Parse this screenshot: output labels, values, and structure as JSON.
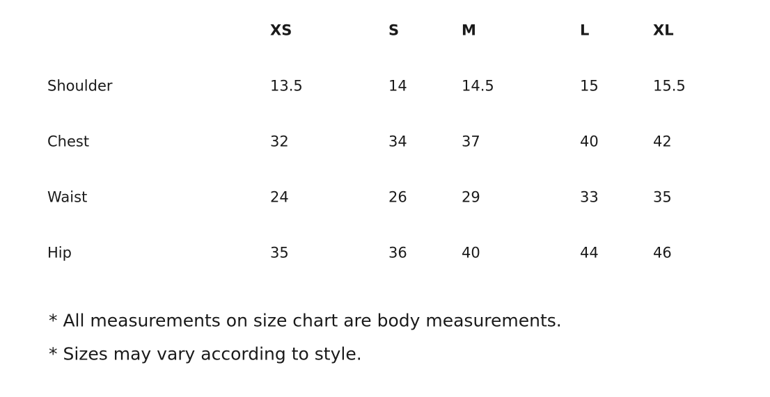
{
  "table": {
    "headers": [
      "XS",
      "S",
      "M",
      "L",
      "XL"
    ],
    "rows": [
      {
        "label": "Shoulder",
        "values": [
          13.5,
          14,
          14.5,
          15,
          15.5
        ]
      },
      {
        "label": "Chest",
        "values": [
          32,
          34,
          37,
          40,
          42
        ]
      },
      {
        "label": "Waist",
        "values": [
          24,
          26,
          29,
          33,
          35
        ]
      },
      {
        "label": "Hip",
        "values": [
          35,
          36,
          40,
          44,
          46
        ]
      }
    ]
  },
  "notes": [
    "* All measurements on size chart are body measurements.",
    "* Sizes may vary according to style."
  ]
}
